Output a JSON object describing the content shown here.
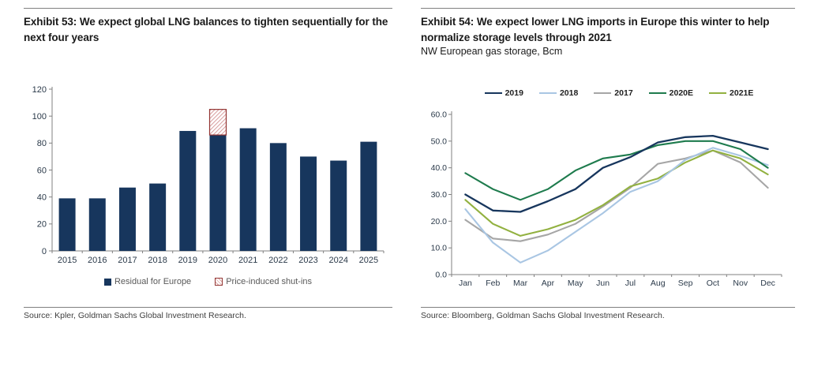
{
  "panels": {
    "left": {
      "title": "Exhibit 53: We expect global LNG balances to tighten sequentially for the next four years",
      "source": "Source: Kpler, Goldman Sachs Global Investment Research."
    },
    "right": {
      "title": "Exhibit 54: We expect lower LNG imports in Europe this winter to help normalize storage levels through 2021",
      "subtitle": "NW European gas storage, Bcm",
      "source": "Source: Bloomberg, Goldman Sachs Global Investment Research."
    }
  },
  "colors": {
    "navy": "#17365D",
    "light_blue": "#A9C6E3",
    "gray": "#A6A6A6",
    "dark_green": "#1E7B4D",
    "olive_green": "#92B140",
    "hatch_border": "#943634",
    "hatch_line": "#D9A0A0",
    "axis": "#808080"
  },
  "chart_data": [
    {
      "type": "bar",
      "title": "Exhibit 53: We expect global LNG balances to tighten sequentially for the next four years",
      "categories": [
        "2015",
        "2016",
        "2017",
        "2018",
        "2019",
        "2020",
        "2021",
        "2022",
        "2023",
        "2024",
        "2025"
      ],
      "series": [
        {
          "name": "Residual for Europe",
          "color": "#17365D",
          "style": "solid",
          "values": [
            39,
            39,
            47,
            50,
            89,
            86,
            91,
            80,
            70,
            67,
            81
          ]
        },
        {
          "name": "Price-induced shut-ins",
          "color": "#943634",
          "style": "hatch",
          "values": [
            0,
            0,
            0,
            0,
            0,
            19,
            0,
            0,
            0,
            0,
            0
          ]
        }
      ],
      "stacked": true,
      "ylim": [
        0,
        120
      ],
      "ytick_step": 20,
      "ytick_labels": [
        "0",
        "20",
        "40",
        "60",
        "80",
        "100",
        "120"
      ],
      "grid": false,
      "legend_position": "bottom"
    },
    {
      "type": "line",
      "title": "Exhibit 54: We expect lower LNG imports in Europe this winter to help normalize storage levels through 2021",
      "ylabel": "NW European gas storage, Bcm",
      "categories": [
        "Jan",
        "Feb",
        "Mar",
        "Apr",
        "May",
        "Jun",
        "Jul",
        "Aug",
        "Sep",
        "Oct",
        "Nov",
        "Dec"
      ],
      "series": [
        {
          "name": "2019",
          "color": "#17365D",
          "values": [
            30,
            24,
            23.5,
            27.5,
            32,
            40,
            44,
            49.5,
            51.5,
            52,
            49.5,
            47
          ]
        },
        {
          "name": "2018",
          "color": "#A9C6E3",
          "values": [
            24.5,
            12,
            4.5,
            9,
            16,
            23,
            31,
            35,
            43,
            47.5,
            44.5,
            41
          ]
        },
        {
          "name": "2017",
          "color": "#A6A6A6",
          "values": [
            20.5,
            13.5,
            12.5,
            15,
            19,
            25.5,
            32.5,
            41.5,
            43.5,
            46.5,
            42,
            32.5
          ]
        },
        {
          "name": "2020E",
          "color": "#1E7B4D",
          "values": [
            38,
            32,
            28,
            32,
            39,
            43.5,
            45,
            48.5,
            50,
            50,
            47,
            40
          ]
        },
        {
          "name": "2021E",
          "color": "#92B140",
          "values": [
            28,
            19,
            14.5,
            17,
            20.5,
            26,
            33,
            36,
            42,
            46.5,
            43.5,
            37.5
          ]
        }
      ],
      "ylim": [
        0,
        60
      ],
      "ytick_step": 10,
      "ytick_labels": [
        "0.0",
        "10.0",
        "20.0",
        "30.0",
        "40.0",
        "50.0",
        "60.0"
      ],
      "grid": false,
      "legend_position": "top"
    }
  ]
}
